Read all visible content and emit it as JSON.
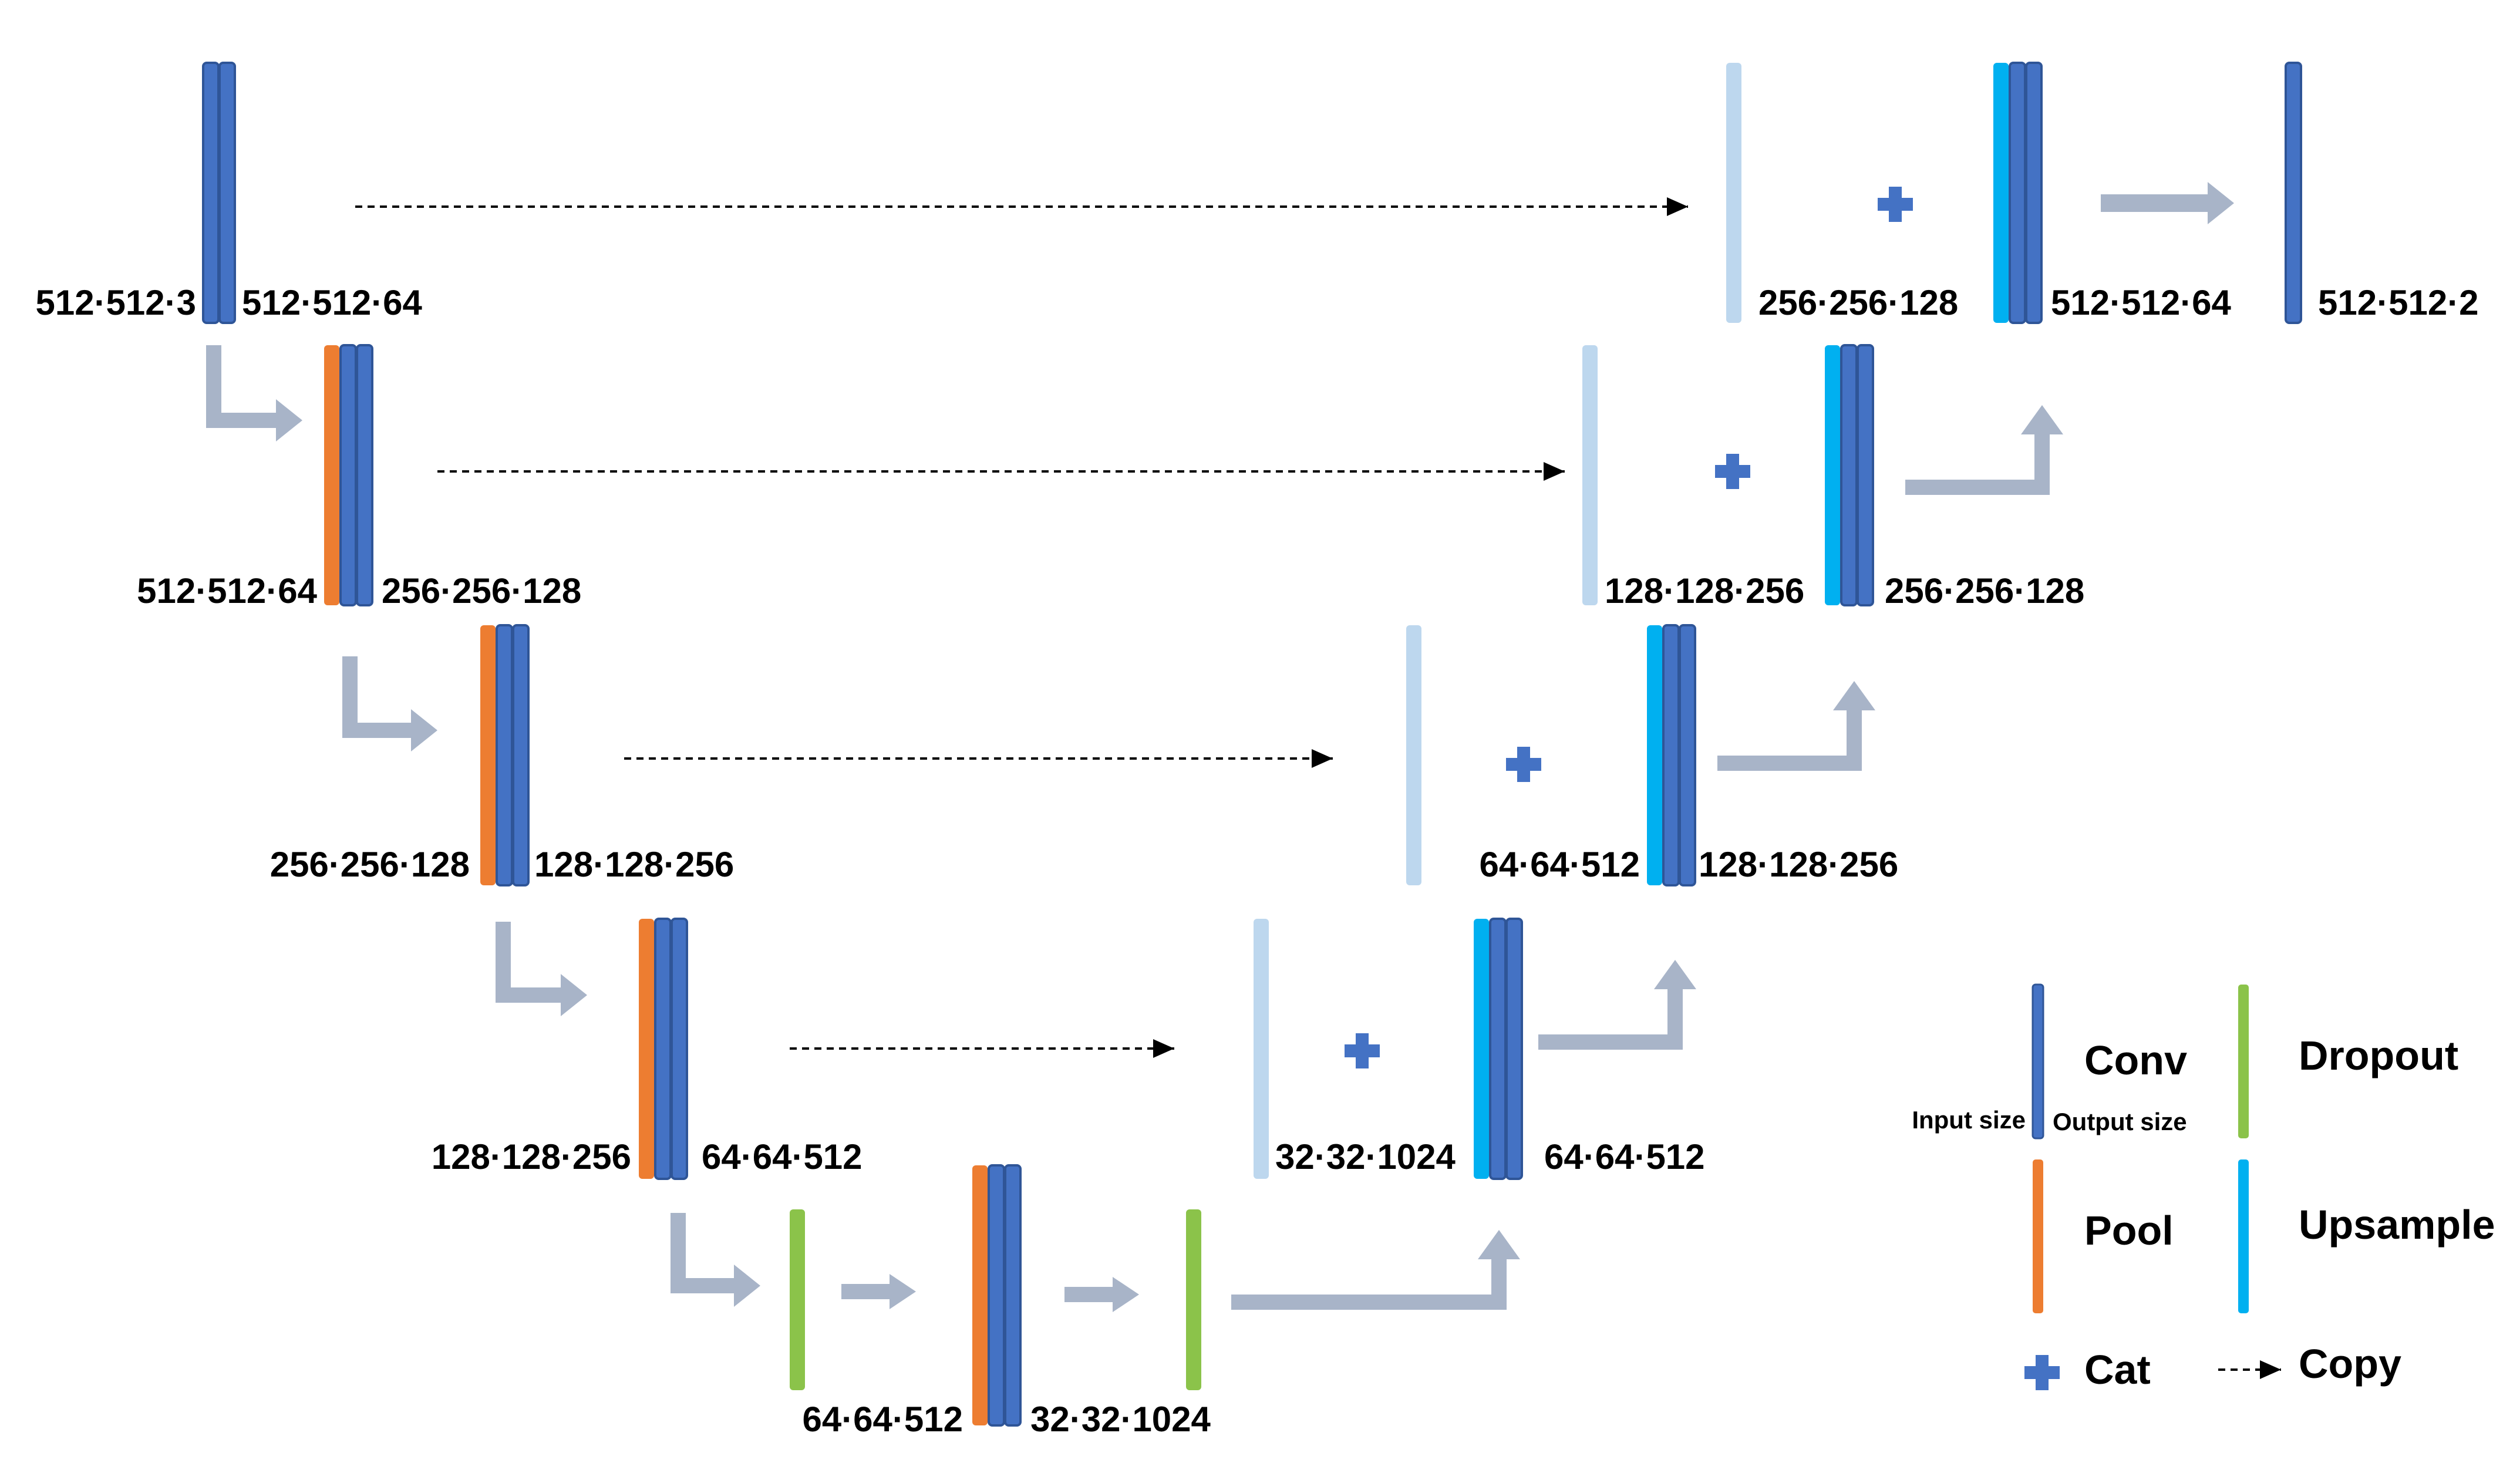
{
  "colors": {
    "conv": "#4472C4",
    "conv_edge": "#2F5597",
    "pool": "#ED7D31",
    "upsample": "#00B0F0",
    "dropout": "#8BC34A",
    "skip": "#BDD7EE",
    "arrow": "#A8B4C8",
    "copy": "#000000",
    "cat": "#4472C4"
  },
  "labels": {
    "enc1_in": "512·512·3",
    "enc1_out": "512·512·64",
    "enc2_in": "512·512·64",
    "enc2_out": "256·256·128",
    "enc3_in": "256·256·128",
    "enc3_out": "128·128·256",
    "enc4_in": "128·128·256",
    "enc4_out": "64·64·512",
    "bottom_in": "64·64·512",
    "bottom_out": "32·32·1024",
    "dec4_skip": "32·32·1024",
    "dec4_out": "64·64·512",
    "dec3_skip": "64·64·512",
    "dec3_out": "128·128·256",
    "dec2_skip": "128·128·256",
    "dec2_out": "256·256·128",
    "dec1_skip": "256·256·128",
    "dec1_out": "512·512·64",
    "final_out": "512·512·2"
  },
  "legend": {
    "conv": "Conv",
    "input_size": "Input size",
    "output_size": "Output size",
    "pool": "Pool",
    "dropout": "Dropout",
    "upsample": "Upsample",
    "cat": "Cat",
    "copy": "Copy"
  }
}
